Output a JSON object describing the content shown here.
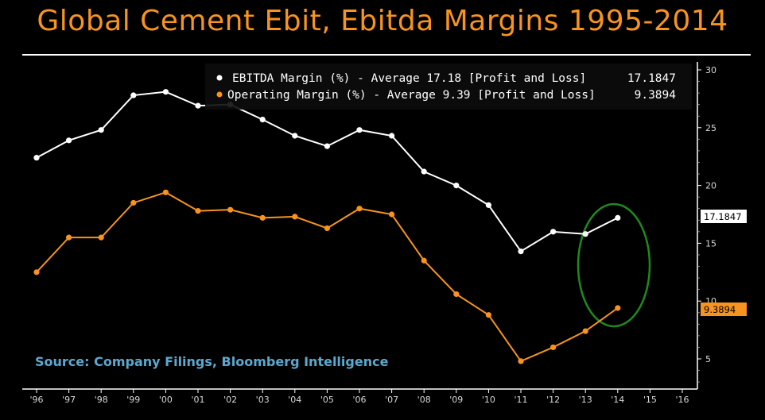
{
  "title": "Global Cement Ebit, Ebitda Margins 1995-2014",
  "source": "Source: Company Filings, Bloomberg Intelligence",
  "colors": {
    "background": "#000000",
    "title": "#f7931e",
    "ebitda": "#ffffff",
    "operating": "#f7931e",
    "source": "#5ba8d0",
    "highlight_circle": "#1e8a1e"
  },
  "chart_data": {
    "type": "line",
    "title": "Global Cement Ebit, Ebitda Margins 1995-2014",
    "x_tick_labels": [
      "'96",
      "'97",
      "'98",
      "'99",
      "'00",
      "'01",
      "'02",
      "'03",
      "'04",
      "'05",
      "'06",
      "'07",
      "'08",
      "'09",
      "'10",
      "'11",
      "'12",
      "'13",
      "'14",
      "'15",
      "'16"
    ],
    "x": [
      "1996",
      "1997",
      "1998",
      "1999",
      "2000",
      "2001",
      "2002",
      "2003",
      "2004",
      "2005",
      "2006",
      "2007",
      "2008",
      "2009",
      "2010",
      "2011",
      "2012",
      "2013",
      "2014"
    ],
    "y_ticks": [
      5,
      10,
      15,
      20,
      25,
      30
    ],
    "ylim": [
      2,
      30
    ],
    "y_axis_side": "right",
    "grid": false,
    "legend_position": "top-right",
    "series": [
      {
        "name": "EBITDA Margin (%) - Average 17.18 [Profit and Loss] 17.1847",
        "legend_label": "EBITDA Margin (%) - Average 17.18 [Profit and Loss]",
        "legend_value": "17.1847",
        "last_value_tag": "17.1847",
        "color": "#ffffff",
        "values": [
          22.4,
          23.9,
          24.8,
          27.8,
          28.1,
          26.9,
          27.0,
          25.7,
          24.3,
          23.4,
          24.8,
          24.3,
          21.2,
          20.0,
          18.3,
          14.3,
          16.0,
          15.8,
          17.2
        ]
      },
      {
        "name": "Operating Margin (%) - Average 9.39 [Profit and Loss] 9.3894",
        "legend_label": "Operating Margin (%) - Average 9.39 [Profit and Loss]",
        "legend_value": "9.3894",
        "last_value_tag": "9.3894",
        "color": "#f7931e",
        "values": [
          12.5,
          15.5,
          15.5,
          18.5,
          19.4,
          17.8,
          17.9,
          17.2,
          17.3,
          16.3,
          18.0,
          17.5,
          13.5,
          10.6,
          8.8,
          4.8,
          6.0,
          7.4,
          9.4
        ]
      }
    ],
    "annotation": "green ellipse around 2014 data points"
  }
}
